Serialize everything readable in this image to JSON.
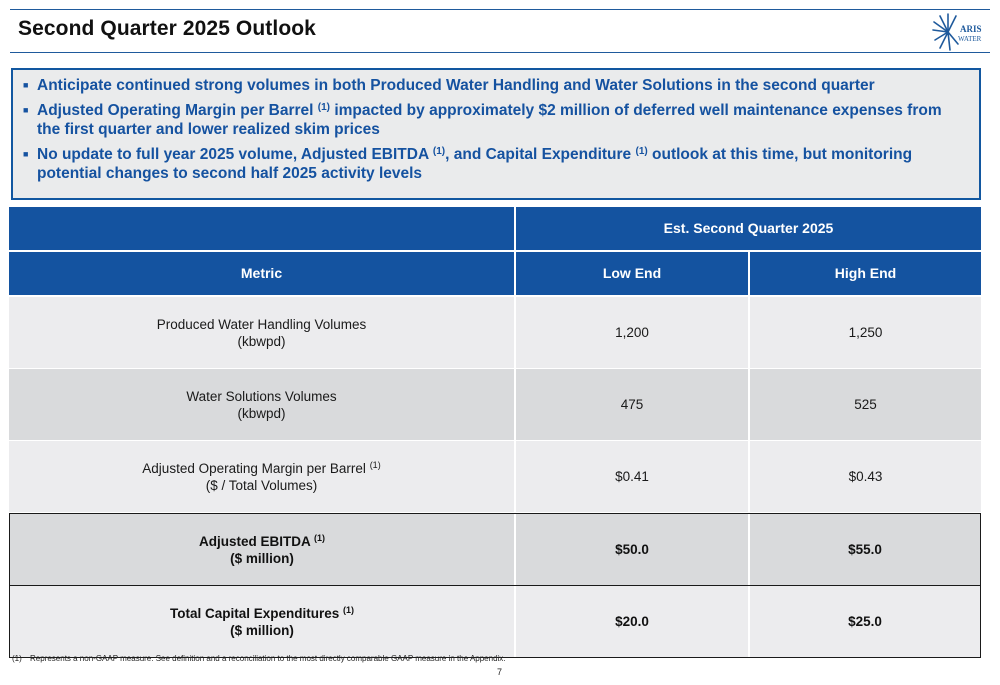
{
  "header": {
    "title": "Second Quarter 2025 Outlook",
    "logo_text": "ARIS WATER",
    "logo_color": "#1f5a9c"
  },
  "outlook": {
    "bullets": [
      {
        "before": "Anticipate continued strong volumes in both Produced Water Handling and Water Solutions in the second quarter"
      },
      {
        "before": "Adjusted Operating Margin per Barrel ",
        "sup": "(1)",
        "after": " impacted by approximately $2 million of deferred well maintenance expenses from the first quarter and lower realized skim prices"
      },
      {
        "before": "No update to full year 2025 volume, Adjusted EBITDA ",
        "sup": "(1)",
        "middle": ", and Capital Expenditure ",
        "sup2": "(1)",
        "after": " outlook at this time, but monitoring potential changes to second half 2025 activity levels"
      }
    ]
  },
  "table": {
    "group_header": "Est. Second Quarter 2025",
    "columns": [
      "Metric",
      "Low End",
      "High End"
    ],
    "rows": [
      {
        "metric_line1": "Produced Water Handling Volumes",
        "metric_sup": "",
        "metric_line2": "(kbwpd)",
        "low": "1,200",
        "high": "1,250"
      },
      {
        "metric_line1": "Water Solutions Volumes",
        "metric_sup": "",
        "metric_line2": "(kbwpd)",
        "low": "475",
        "high": "525"
      },
      {
        "metric_line1": "Adjusted Operating Margin per Barrel",
        "metric_sup": "(1)",
        "metric_line2": "($ / Total Volumes)",
        "low": "$0.41",
        "high": "$0.43"
      },
      {
        "metric_line1": "Adjusted EBITDA",
        "metric_sup": "(1)",
        "metric_line2": "($ million)",
        "low": "$50.0",
        "high": "$55.0"
      },
      {
        "metric_line1": "Total Capital Expenditures",
        "metric_sup": "(1)",
        "metric_line2": "($ million)",
        "low": "$20.0",
        "high": "$25.0"
      }
    ],
    "colors": {
      "header": "#1453a0",
      "row_light": "#ececee",
      "row_dark": "#d9dadc"
    }
  },
  "footnote": {
    "number": "(1)",
    "text": "Represents a non-GAAP measure. See definition and a reconciliation to the most directly comparable GAAP measure in the Appendix."
  },
  "page_number": "7"
}
